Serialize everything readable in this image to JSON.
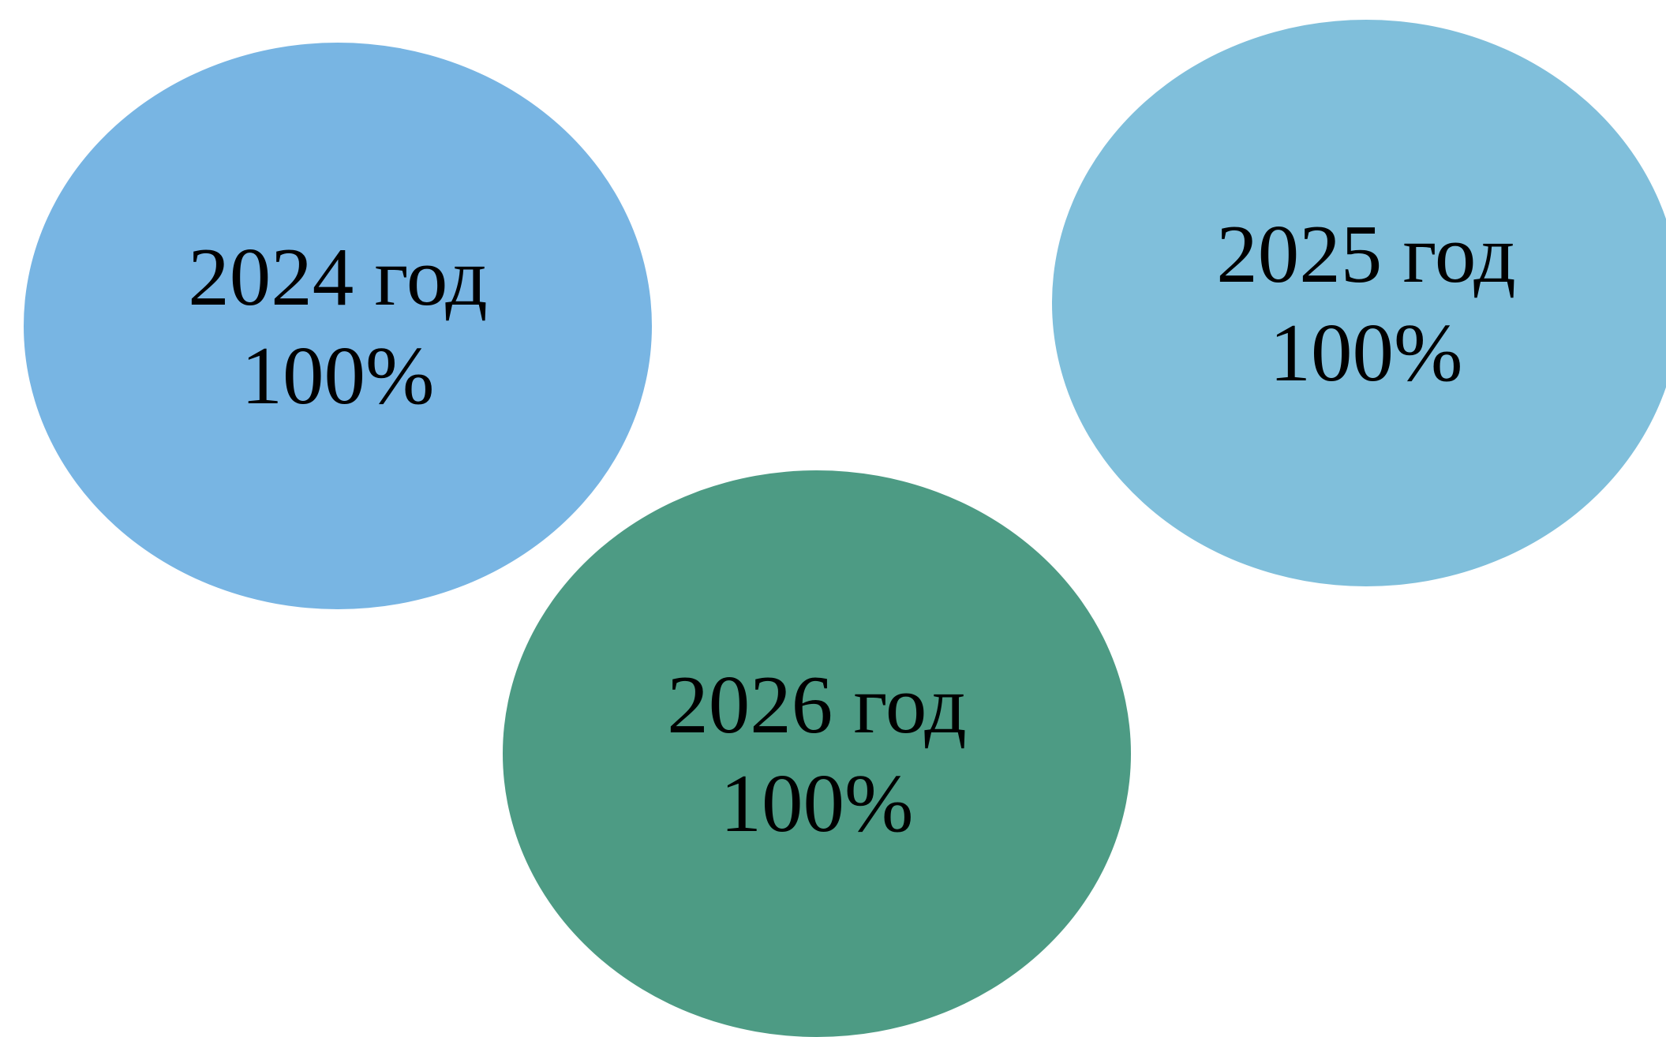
{
  "items": [
    {
      "year_label": "2024 год",
      "percent_label": "100%",
      "color": "#78B5E3"
    },
    {
      "year_label": "2025 год",
      "percent_label": "100%",
      "color": "#80BFDB"
    },
    {
      "year_label": "2026 год",
      "percent_label": "100%",
      "color": "#4D9B84"
    }
  ]
}
